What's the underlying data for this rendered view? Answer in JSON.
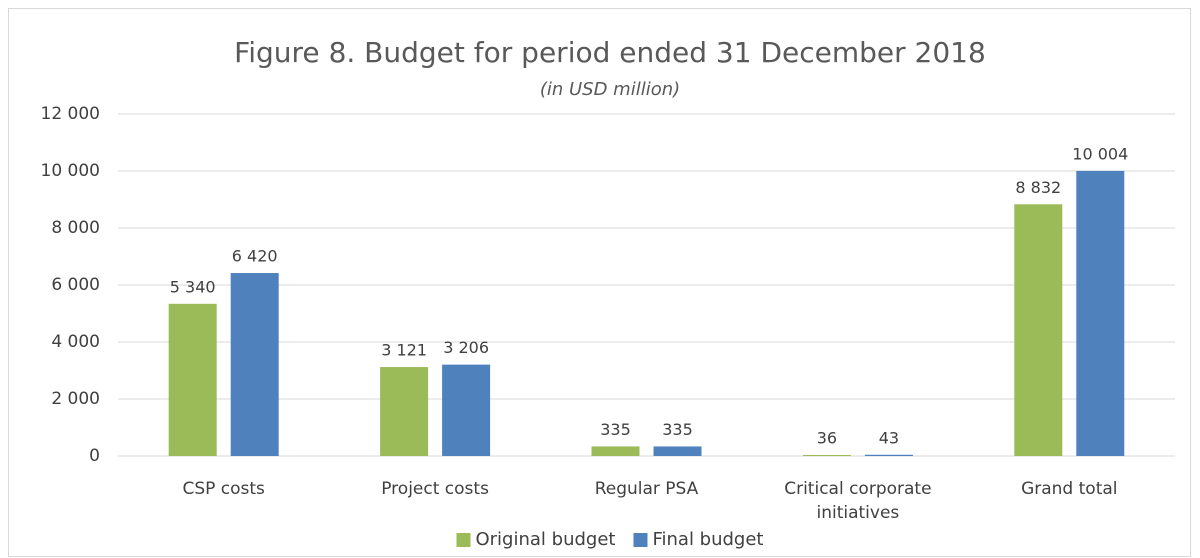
{
  "chart_data": {
    "type": "bar",
    "title": "Figure 8. Budget for period ended 31 December 2018",
    "subtitle": "(in USD million)",
    "categories": [
      "CSP costs",
      "Project costs",
      "Regular PSA",
      "Critical corporate initiatives",
      "Grand total"
    ],
    "series": [
      {
        "name": "Original budget",
        "color": "#9bbb59",
        "values": [
          5340,
          3121,
          335,
          36,
          8832
        ],
        "value_labels": [
          "5 340",
          "3 121",
          "335",
          "36",
          "8 832"
        ]
      },
      {
        "name": "Final budget",
        "color": "#4f81bd",
        "values": [
          6420,
          3206,
          335,
          43,
          10004
        ],
        "value_labels": [
          "6 420",
          "3 206",
          "335",
          "43",
          "10 004"
        ]
      }
    ],
    "ylim": [
      0,
      12000
    ],
    "yticks": [
      0,
      {
        "value": 2000,
        "label": "2 000"
      },
      {
        "value": 4000,
        "label": "4 000"
      },
      {
        "value": 6000,
        "label": "6 000"
      },
      {
        "value": 8000,
        "label": "8 000"
      },
      {
        "value": 10000,
        "label": "10 000"
      },
      {
        "value": 12000,
        "label": "12 000"
      }
    ],
    "grid": true,
    "legend": "bottom"
  }
}
